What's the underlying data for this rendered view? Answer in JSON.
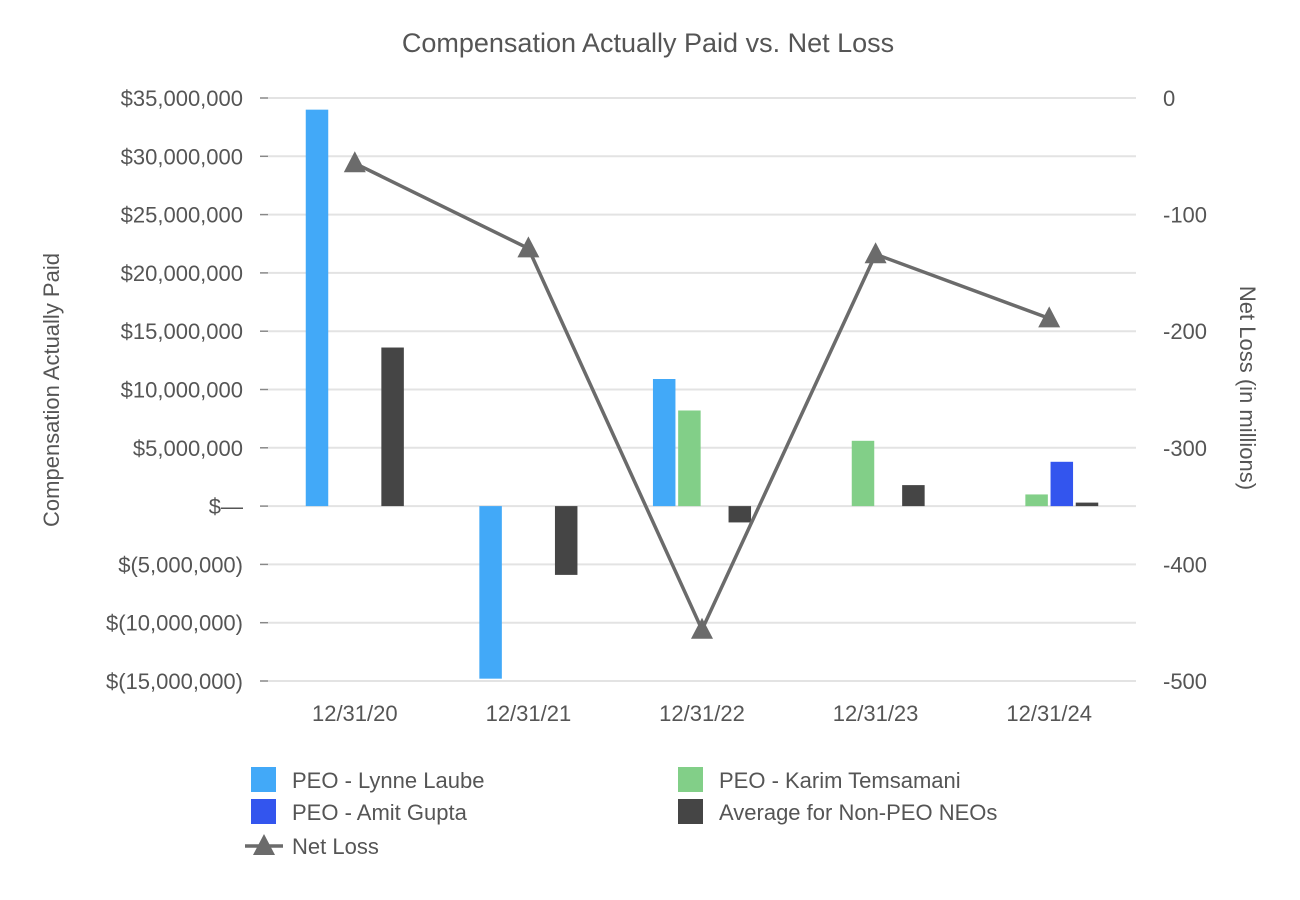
{
  "chart_data": {
    "type": "bar",
    "title": "Compensation Actually Paid vs. Net Loss",
    "ylabel": "Compensation Actually Paid",
    "y2label": "Net Loss (in millions)",
    "categories": [
      "12/31/20",
      "12/31/21",
      "12/31/22",
      "12/31/23",
      "12/31/24"
    ],
    "ylim": [
      -15000000,
      35000000
    ],
    "y2lim": [
      -500,
      0
    ],
    "yticks": [
      {
        "value": 35000000,
        "label": "$35,000,000"
      },
      {
        "value": 30000000,
        "label": "$30,000,000"
      },
      {
        "value": 25000000,
        "label": "$25,000,000"
      },
      {
        "value": 20000000,
        "label": "$20,000,000"
      },
      {
        "value": 15000000,
        "label": "$15,000,000"
      },
      {
        "value": 10000000,
        "label": "$10,000,000"
      },
      {
        "value": 5000000,
        "label": "$5,000,000"
      },
      {
        "value": 0,
        "label": "$—"
      },
      {
        "value": -5000000,
        "label": "$(5,000,000)"
      },
      {
        "value": -10000000,
        "label": "$(10,000,000)"
      },
      {
        "value": -15000000,
        "label": "$(15,000,000)"
      }
    ],
    "y2ticks": [
      {
        "value": 0,
        "label": "0"
      },
      {
        "value": -100,
        "label": "-100"
      },
      {
        "value": -200,
        "label": "-200"
      },
      {
        "value": -300,
        "label": "-300"
      },
      {
        "value": -400,
        "label": "-400"
      },
      {
        "value": -500,
        "label": "-500"
      }
    ],
    "series": [
      {
        "name": "PEO - Lynne Laube",
        "type": "bar",
        "color": "#42a9f8",
        "values": [
          34000000,
          -14800000,
          10900000,
          null,
          null
        ]
      },
      {
        "name": "PEO - Karim Temsamani",
        "type": "bar",
        "color": "#82cf88",
        "values": [
          null,
          null,
          8200000,
          5600000,
          1000000
        ]
      },
      {
        "name": "PEO - Amit Gupta",
        "type": "bar",
        "color": "#3355ee",
        "values": [
          null,
          null,
          null,
          null,
          3800000
        ]
      },
      {
        "name": "Average for Non-PEO NEOs",
        "type": "bar",
        "color": "#454545",
        "values": [
          13600000,
          -5900000,
          -1400000,
          1800000,
          300000
        ]
      },
      {
        "name": "Net Loss",
        "type": "line",
        "axis": "right",
        "color": "#6b6b6b",
        "values": [
          -56,
          -129,
          -456,
          -134,
          -189
        ]
      }
    ],
    "legend_position": "bottom"
  }
}
